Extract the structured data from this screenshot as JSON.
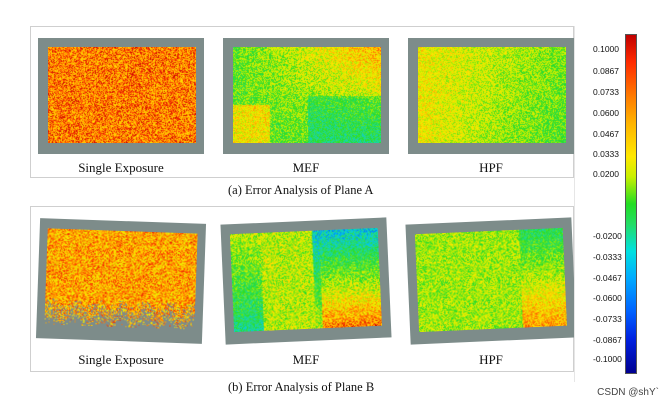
{
  "panel_a": {
    "labels": [
      "Single Exposure",
      "MEF",
      "HPF"
    ],
    "caption": "(a) Error Analysis of Plane A"
  },
  "panel_b": {
    "labels": [
      "Single Exposure",
      "MEF",
      "HPF"
    ],
    "caption": "(b) Error Analysis  of Plane B"
  },
  "colorbar": {
    "ticks": [
      "0.1000",
      "0.0867",
      "0.0733",
      "0.0600",
      "0.0467",
      "0.0333",
      "0.0200",
      "-0.0200",
      "-0.0333",
      "-0.0467",
      "-0.0600",
      "-0.0733",
      "-0.0867",
      "-0.1000"
    ]
  },
  "watermark": "CSDN @shY`"
}
